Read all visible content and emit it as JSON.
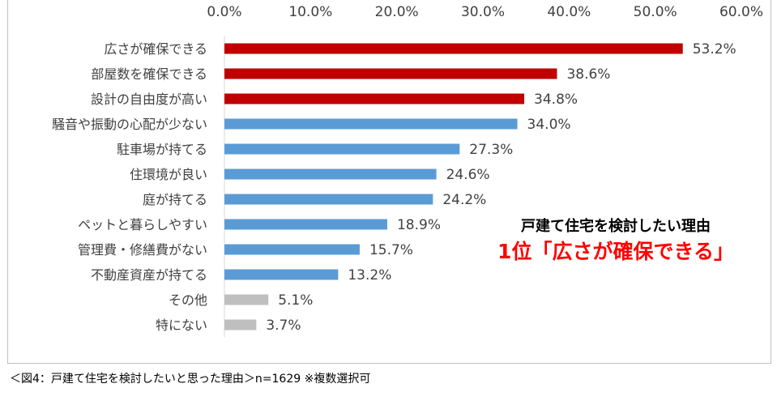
{
  "chart_data": {
    "type": "bar",
    "orientation": "horizontal",
    "categories": [
      "広さが確保できる",
      "部屋数を確保できる",
      "設計の自由度が高い",
      "騒音や振動の心配が少ない",
      "駐車場が持てる",
      "住環境が良い",
      "庭が持てる",
      "ペットと暮らしやすい",
      "管理費・修繕費がない",
      "不動産資産が持てる",
      "その他",
      "特にない"
    ],
    "values": [
      53.2,
      38.6,
      34.8,
      34.0,
      27.3,
      24.6,
      24.2,
      18.9,
      15.7,
      13.2,
      5.1,
      3.7
    ],
    "value_labels": [
      "53.2%",
      "38.6%",
      "34.8%",
      "34.0%",
      "27.3%",
      "24.6%",
      "24.2%",
      "18.9%",
      "15.7%",
      "13.2%",
      "5.1%",
      "3.7%"
    ],
    "bar_colors": [
      "#c00000",
      "#c00000",
      "#c00000",
      "#5b9bd5",
      "#5b9bd5",
      "#5b9bd5",
      "#5b9bd5",
      "#5b9bd5",
      "#5b9bd5",
      "#5b9bd5",
      "#bfbfbf",
      "#bfbfbf"
    ],
    "xlim": [
      0,
      60
    ],
    "x_ticks": [
      0,
      10,
      20,
      30,
      40,
      50,
      60
    ],
    "x_tick_labels": [
      "0.0%",
      "10.0%",
      "20.0%",
      "30.0%",
      "40.0%",
      "50.0%",
      "60.0%"
    ],
    "x_axis_position": "top",
    "grid": false,
    "legend": "none"
  },
  "annotation": {
    "line1": "戸建て住宅を検討したい理由",
    "line2": "1位「広さが確保できる」",
    "line2_color": "#ff0000"
  },
  "caption": "＜図4：戸建て住宅を検討したいと思った理由＞n=1629 ※複数選択可"
}
